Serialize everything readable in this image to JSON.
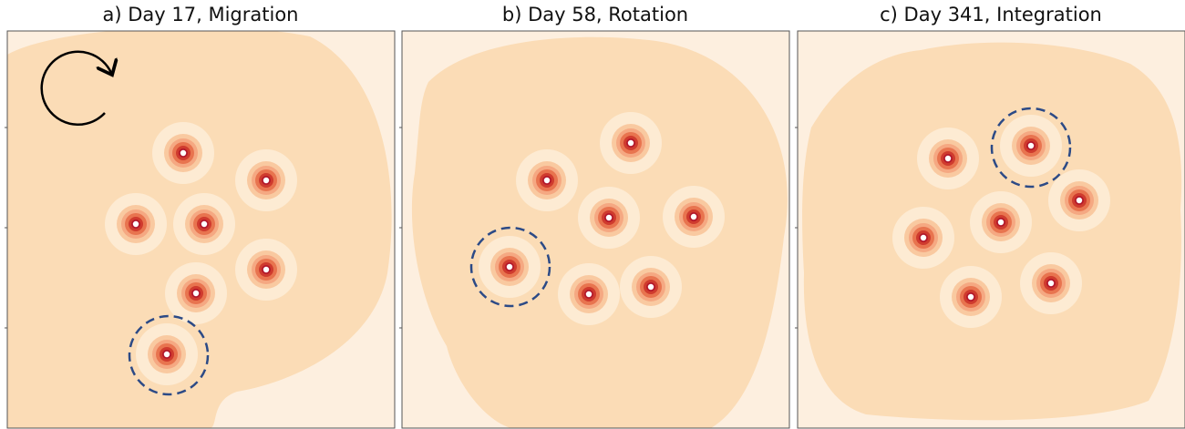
{
  "panels": [
    {
      "title": "a) Day 17, Migration"
    },
    {
      "title": "b) Day 58, Rotation"
    },
    {
      "title": "c) Day 341, Integration"
    }
  ]
}
